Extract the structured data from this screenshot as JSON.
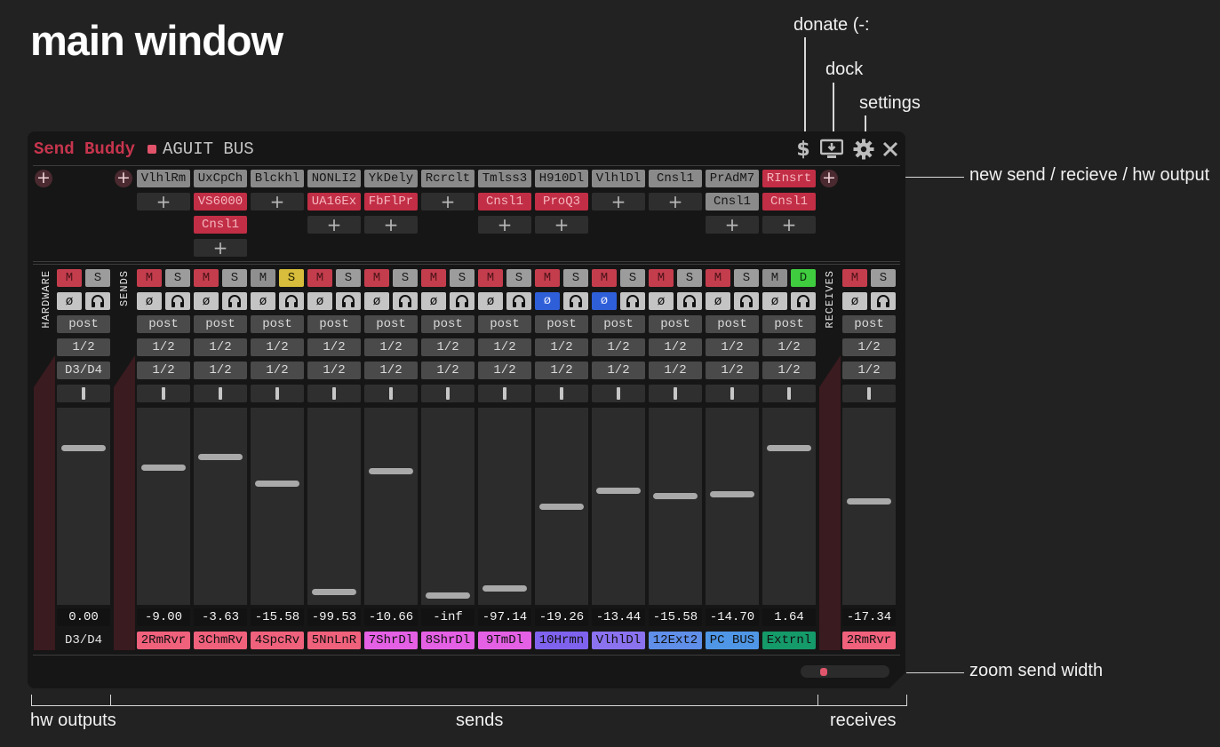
{
  "heading": "main window",
  "annotations": {
    "donate": "donate (-:",
    "dock": "dock",
    "settings": "settings",
    "new_send": "new send / recieve / hw output",
    "zoom": "zoom send width",
    "hw_outputs": "hw outputs",
    "sends": "sends",
    "receives": "receives"
  },
  "window": {
    "app_name": "Send Buddy",
    "track_name": "AGUIT BUS",
    "icons": [
      "dollar-icon",
      "dock-icon",
      "gear-icon",
      "close-icon"
    ],
    "accent_color": "#c6354d"
  },
  "section_labels": {
    "hardware": "HARDWARE",
    "sends": "SENDS",
    "receives": "RECEIVES"
  },
  "hardware": {
    "mute": "M",
    "solo": "S",
    "mode": "post",
    "channels_src": "1/2",
    "channels_dst": "D3/D4",
    "volume": "0.00",
    "volume_db": 0,
    "output": "D3/D4"
  },
  "sends": [
    {
      "fx": [
        {
          "name": "VlhlRm",
          "active": true
        }
      ],
      "mute_on": true,
      "solo": "S",
      "solo_on": false,
      "phase_on": false,
      "mode": "post",
      "src": "1/2",
      "dst": "1/2",
      "volume": "-9.00",
      "level": 0.72,
      "dest": "2RmRvr",
      "dest_color": "#f0617c"
    },
    {
      "fx": [
        {
          "name": "UxCpCh",
          "active": true
        },
        {
          "name": "VS6000",
          "active": false
        },
        {
          "name": "Cnsl1",
          "active": false
        }
      ],
      "mute_on": true,
      "solo": "S",
      "solo_on": false,
      "phase_on": false,
      "mode": "post",
      "src": "1/2",
      "dst": "1/2",
      "volume": "-3.63",
      "level": 0.78,
      "dest": "3ChmRv",
      "dest_color": "#f0617c"
    },
    {
      "fx": [
        {
          "name": "Blckhl",
          "active": true
        }
      ],
      "mute_on": false,
      "solo": "S",
      "solo_on": true,
      "phase_on": false,
      "mode": "post",
      "src": "1/2",
      "dst": "1/2",
      "volume": "-15.58",
      "level": 0.63,
      "dest": "4SpcRv",
      "dest_color": "#f0617c"
    },
    {
      "fx": [
        {
          "name": "NONLI2",
          "active": true
        },
        {
          "name": "UA16Ex",
          "active": false
        }
      ],
      "mute_on": true,
      "solo": "S",
      "solo_on": false,
      "phase_on": false,
      "mode": "post",
      "src": "1/2",
      "dst": "1/2",
      "volume": "-99.53",
      "level": 0.02,
      "dest": "5NnLnR",
      "dest_color": "#f0617c"
    },
    {
      "fx": [
        {
          "name": "YkDely",
          "active": true
        },
        {
          "name": "FbFlPr",
          "active": false
        }
      ],
      "mute_on": true,
      "solo": "S",
      "solo_on": false,
      "phase_on": false,
      "mode": "post",
      "src": "1/2",
      "dst": "1/2",
      "volume": "-10.66",
      "level": 0.7,
      "dest": "7ShrDl",
      "dest_color": "#e460e4"
    },
    {
      "fx": [
        {
          "name": "Rcrclt",
          "active": true
        }
      ],
      "mute_on": true,
      "solo": "S",
      "solo_on": false,
      "phase_on": false,
      "mode": "post",
      "src": "1/2",
      "dst": "1/2",
      "volume": "-inf",
      "level": 0.0,
      "dest": "8ShrDl",
      "dest_color": "#e460e4"
    },
    {
      "fx": [
        {
          "name": "Tmlss3",
          "active": true
        },
        {
          "name": "Cnsl1",
          "active": false
        }
      ],
      "mute_on": true,
      "solo": "S",
      "solo_on": false,
      "phase_on": false,
      "mode": "post",
      "src": "1/2",
      "dst": "1/2",
      "volume": "-97.14",
      "level": 0.04,
      "dest": "9TmDl",
      "dest_color": "#e460e4"
    },
    {
      "fx": [
        {
          "name": "H910Dl",
          "active": true
        },
        {
          "name": "ProQ3",
          "active": false
        }
      ],
      "mute_on": true,
      "solo": "S",
      "solo_on": false,
      "phase_on": true,
      "mode": "post",
      "src": "1/2",
      "dst": "1/2",
      "volume": "-19.26",
      "level": 0.5,
      "dest": "10Hrmn",
      "dest_color": "#7f63ef"
    },
    {
      "fx": [
        {
          "name": "VlhlDl",
          "active": true
        }
      ],
      "mute_on": true,
      "solo": "S",
      "solo_on": false,
      "phase_on": true,
      "mode": "post",
      "src": "1/2",
      "dst": "1/2",
      "volume": "-13.44",
      "level": 0.59,
      "dest": "VlhlDl",
      "dest_color": "#8b72ef"
    },
    {
      "fx": [
        {
          "name": "Cnsl1",
          "active": true
        }
      ],
      "mute_on": true,
      "solo": "S",
      "solo_on": false,
      "phase_on": false,
      "mode": "post",
      "src": "1/2",
      "dst": "1/2",
      "volume": "-15.58",
      "level": 0.56,
      "dest": "12Ext2",
      "dest_color": "#5f8fe9"
    },
    {
      "fx": [
        {
          "name": "PrAdM7",
          "active": true
        },
        {
          "name": "Cnsl1",
          "active": true
        }
      ],
      "mute_on": true,
      "solo": "S",
      "solo_on": false,
      "phase_on": false,
      "mode": "post",
      "src": "1/2",
      "dst": "1/2",
      "volume": "-14.70",
      "level": 0.57,
      "dest": "PC BUS",
      "dest_color": "#4f97e6"
    },
    {
      "fx": [
        {
          "name": "RInsrt",
          "active": false
        },
        {
          "name": "Cnsl1",
          "active": false
        }
      ],
      "mute_on": false,
      "solo": "D",
      "solo_on": true,
      "phase_on": false,
      "mode": "post",
      "src": "1/2",
      "dst": "1/2",
      "volume": "1.64",
      "level": 0.83,
      "dest": "Extrnl",
      "dest_color": "#159a6a"
    }
  ],
  "receives": [
    {
      "mute_on": true,
      "solo": "S",
      "mode": "post",
      "src": "1/2",
      "dst": "1/2",
      "volume": "-17.34",
      "level": 0.53,
      "dest": "2RmRvr",
      "dest_color": "#f0617c"
    }
  ],
  "labels": {
    "mute": "M",
    "phase": "ø",
    "plus": "+"
  }
}
